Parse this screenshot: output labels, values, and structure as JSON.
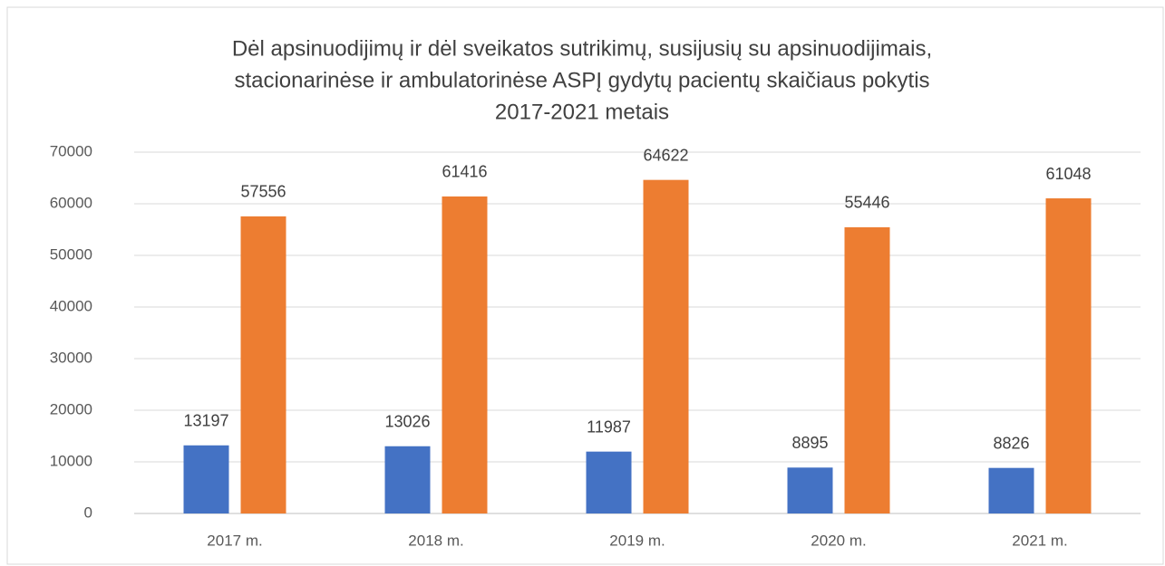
{
  "chart_data": {
    "type": "bar",
    "title": [
      "Dėl apsinuodijimų ir dėl sveikatos sutrikimų, susijusių su apsinuodijimais,",
      "stacionarinėse ir ambulatorinėse ASPĮ  gydytų pacientų skaičiaus pokytis",
      "2017-2021 metais"
    ],
    "categories": [
      "2017 m.",
      "2018 m.",
      "2019 m.",
      "2020 m.",
      "2021 m."
    ],
    "series": [
      {
        "color": "#4472c4",
        "values": [
          13197,
          13026,
          11987,
          8895,
          8826
        ]
      },
      {
        "color": "#ed7d31",
        "values": [
          57556,
          61416,
          64622,
          55446,
          61048
        ]
      }
    ],
    "ylim": [
      0,
      70000
    ],
    "yticks": [
      0,
      10000,
      20000,
      30000,
      40000,
      50000,
      60000,
      70000
    ],
    "grid": true
  }
}
